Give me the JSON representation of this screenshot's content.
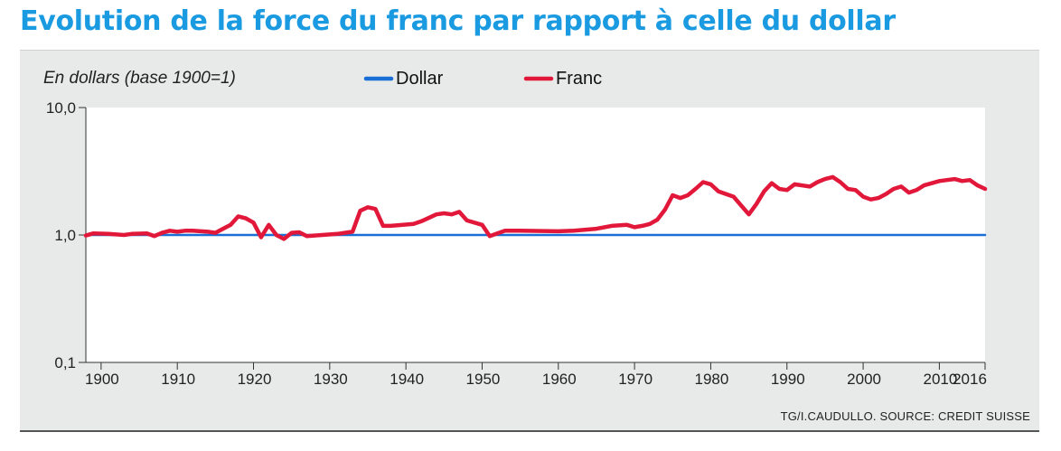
{
  "title": "Evolution de la force du franc par rapport à celle du dollar",
  "source": "TG/I.CAUDULLO. SOURCE: CREDIT SUISSE",
  "colors": {
    "title": "#1a9ae0",
    "dollar": "#1a6fd6",
    "franc": "#e2183a",
    "panel": "#e8eae9"
  },
  "chart_data": {
    "type": "line",
    "ylabel": "En dollars (base 1900=1)",
    "yscale": "log",
    "ylim": [
      0.1,
      10
    ],
    "yticks": [
      {
        "value": 10,
        "label": "10,0"
      },
      {
        "value": 1,
        "label": "1,0"
      },
      {
        "value": 0.1,
        "label": "0,1"
      }
    ],
    "xlim": [
      1898,
      2016
    ],
    "xticks": [
      1900,
      1910,
      1920,
      1930,
      1940,
      1950,
      1960,
      1970,
      1980,
      1990,
      2000,
      2010,
      2016
    ],
    "legend": [
      "Dollar",
      "Franc"
    ],
    "legend_position": "top",
    "series": [
      {
        "name": "Dollar",
        "x": [
          1898,
          2016
        ],
        "y": [
          1,
          1
        ]
      },
      {
        "name": "Franc",
        "x": [
          1898,
          1899,
          1901,
          1903,
          1904,
          1906,
          1907,
          1908,
          1909,
          1910,
          1911,
          1912,
          1914,
          1915,
          1916,
          1917,
          1918,
          1919,
          1920,
          1921,
          1922,
          1923,
          1924,
          1925,
          1926,
          1927,
          1929,
          1931,
          1933,
          1934,
          1935,
          1936,
          1937,
          1938,
          1941,
          1942,
          1944,
          1945,
          1946,
          1947,
          1948,
          1950,
          1951,
          1952,
          1953,
          1955,
          1960,
          1962,
          1965,
          1967,
          1969,
          1970,
          1971,
          1972,
          1973,
          1974,
          1975,
          1976,
          1977,
          1978,
          1979,
          1980,
          1981,
          1983,
          1984,
          1985,
          1986,
          1987,
          1988,
          1989,
          1990,
          1991,
          1993,
          1994,
          1995,
          1996,
          1997,
          1998,
          1999,
          2000,
          2001,
          2002,
          2003,
          2004,
          2005,
          2006,
          2007,
          2008,
          2009,
          2010,
          2011,
          2012,
          2013,
          2014,
          2015,
          2016
        ],
        "y": [
          0.99,
          1.03,
          1.02,
          1.0,
          1.02,
          1.03,
          0.98,
          1.04,
          1.08,
          1.06,
          1.08,
          1.08,
          1.06,
          1.04,
          1.12,
          1.2,
          1.4,
          1.35,
          1.25,
          0.96,
          1.2,
          1.0,
          0.93,
          1.04,
          1.05,
          0.98,
          1.0,
          1.02,
          1.06,
          1.55,
          1.65,
          1.6,
          1.18,
          1.18,
          1.22,
          1.28,
          1.45,
          1.48,
          1.45,
          1.52,
          1.3,
          1.2,
          0.98,
          1.03,
          1.08,
          1.08,
          1.07,
          1.08,
          1.12,
          1.18,
          1.2,
          1.15,
          1.18,
          1.22,
          1.32,
          1.58,
          2.05,
          1.95,
          2.05,
          2.3,
          2.6,
          2.5,
          2.2,
          2.0,
          1.7,
          1.45,
          1.75,
          2.2,
          2.55,
          2.3,
          2.25,
          2.5,
          2.4,
          2.6,
          2.75,
          2.85,
          2.6,
          2.3,
          2.25,
          2.0,
          1.9,
          1.95,
          2.1,
          2.3,
          2.4,
          2.15,
          2.25,
          2.45,
          2.55,
          2.65,
          2.7,
          2.75,
          2.65,
          2.7,
          2.45,
          2.3
        ]
      }
    ]
  }
}
